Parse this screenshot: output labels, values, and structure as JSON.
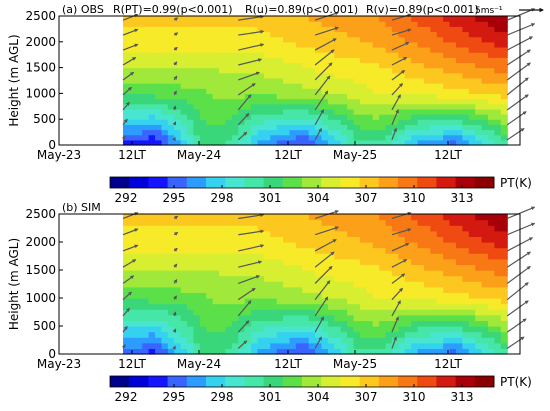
{
  "chart_data": [
    {
      "type": "heatmap",
      "panel_label": "(a) OBS",
      "stats": [
        "R(PT)=0.99(p<0.001)",
        "R(u)=0.89(p<0.001)",
        "R(v)=0.89(p<0.001)"
      ],
      "vector_scale_label": "5ms⁻¹",
      "vector_scale_value": 5,
      "ylabel": "Height (m AGL)",
      "ylim": [
        0,
        2500
      ],
      "y_ticks": [
        "0",
        "500",
        "1000",
        "1500",
        "2000",
        "2500"
      ],
      "x_ticks": [
        "May-23",
        "12LT",
        "May-24",
        "12LT",
        "May-25",
        "12LT"
      ],
      "xlim_hours": [
        0,
        72
      ],
      "data_hours": [
        10,
        70
      ],
      "pt_field": {
        "surface_max_K": [
          null,
          306,
          298,
          306,
          298,
          307,
          299,
          309
        ],
        "surface_max_hours": [
          10,
          14,
          22,
          37,
          46,
          62,
          64,
          70
        ],
        "low_core_K": [
          294,
          293,
          300,
          294,
          299,
          295,
          300
        ],
        "low_core_hours": [
          12,
          15,
          22,
          38,
          46,
          62,
          70
        ],
        "aloft_K": {
          "1000m": [
            302,
            303,
            305,
            307
          ],
          "2000m": [
            306,
            306,
            308,
            312
          ],
          "2500m": [
            307,
            307,
            309,
            314
          ]
        },
        "aloft_hours": [
          10,
          30,
          50,
          70
        ]
      },
      "wind_profiles": [
        {
          "hour": 10,
          "u_ms": [
            0.5,
            1,
            1.5,
            2,
            2.5,
            3,
            3.5,
            3.5,
            3.5
          ],
          "v_ms": [
            1,
            1.5,
            2,
            2,
            2,
            2,
            1.5,
            1.5,
            1.5
          ]
        },
        {
          "hour": 18,
          "u_ms": [
            0.2,
            0.3,
            0.3,
            0.5,
            0.6,
            0.6,
            0.7,
            0.8,
            0.8
          ],
          "v_ms": [
            0.6,
            0.8,
            1,
            1,
            1,
            0.8,
            0.7,
            0.6,
            0.6
          ]
        },
        {
          "hour": 28,
          "u_ms": [
            2,
            2.5,
            3,
            4,
            5,
            5.5,
            6,
            6,
            6
          ],
          "v_ms": [
            2,
            3,
            4,
            3,
            2,
            1.5,
            1.5,
            1,
            1
          ]
        },
        {
          "hour": 40,
          "u_ms": [
            1.5,
            2,
            3,
            3.5,
            4,
            4.5,
            5,
            5.5,
            5.5
          ],
          "v_ms": [
            3,
            4,
            5,
            5,
            4.5,
            4,
            3,
            2,
            2
          ]
        },
        {
          "hour": 52,
          "u_ms": [
            1,
            1.5,
            2,
            2.5,
            3,
            3.5,
            4,
            4.5,
            4.5
          ],
          "v_ms": [
            3,
            4,
            4,
            3,
            2.5,
            2,
            2,
            1.5,
            1.5
          ]
        },
        {
          "hour": 70,
          "u_ms": [
            4,
            4.5,
            5,
            5,
            5.5,
            5.5,
            6,
            6.5,
            6.5
          ],
          "v_ms": [
            3,
            3.5,
            4,
            4.5,
            4.5,
            4,
            3.5,
            3,
            3
          ]
        }
      ]
    },
    {
      "type": "heatmap",
      "panel_label": "(b) SIM",
      "ylabel": "Height (m AGL)",
      "ylim": [
        0,
        2500
      ],
      "y_ticks": [
        "0",
        "500",
        "1000",
        "1500",
        "2000",
        "2500"
      ],
      "x_ticks": [
        "May-23",
        "12LT",
        "May-24",
        "12LT",
        "May-25",
        "12LT"
      ],
      "xlim_hours": [
        0,
        72
      ],
      "data_hours": [
        10,
        70
      ],
      "pt_field": {
        "surface_max_K": [
          null,
          306,
          298,
          306,
          298,
          307,
          299,
          309
        ],
        "surface_max_hours": [
          10,
          14,
          22,
          37,
          46,
          62,
          64,
          70
        ],
        "low_core_K": [
          295,
          294,
          300,
          294,
          299,
          295,
          300
        ],
        "low_core_hours": [
          12,
          15,
          22,
          38,
          46,
          62,
          70
        ],
        "aloft_K": {
          "1000m": [
            302,
            303,
            305,
            307
          ],
          "2000m": [
            306,
            306,
            308,
            312
          ],
          "2500m": [
            307,
            307,
            309,
            314
          ]
        },
        "aloft_hours": [
          10,
          30,
          50,
          70
        ]
      },
      "wind_profiles": [
        {
          "hour": 10,
          "u_ms": [
            0.5,
            1,
            1.5,
            2,
            2.5,
            3,
            3.5,
            3.5,
            3.5
          ],
          "v_ms": [
            1,
            1.5,
            2,
            2,
            2,
            2,
            1.5,
            1.5,
            1.5
          ]
        },
        {
          "hour": 18,
          "u_ms": [
            0.2,
            0.3,
            0.3,
            0.5,
            0.6,
            0.6,
            0.7,
            0.8,
            0.8
          ],
          "v_ms": [
            0.6,
            0.8,
            1,
            1,
            1,
            0.8,
            0.7,
            0.6,
            0.6
          ]
        },
        {
          "hour": 28,
          "u_ms": [
            2,
            2.5,
            3,
            4,
            5,
            5.5,
            6,
            6,
            6
          ],
          "v_ms": [
            2,
            3,
            4,
            3,
            2,
            1.5,
            1.5,
            1,
            1
          ]
        },
        {
          "hour": 40,
          "u_ms": [
            1.5,
            2,
            3,
            3.5,
            4,
            4.5,
            5,
            5.5,
            5.5
          ],
          "v_ms": [
            3,
            4,
            5,
            5,
            4.5,
            4,
            3,
            2,
            2
          ]
        },
        {
          "hour": 52,
          "u_ms": [
            1,
            1.5,
            2,
            2.5,
            3,
            3.5,
            4,
            4.5,
            4.5
          ],
          "v_ms": [
            3,
            4,
            4,
            3,
            2.5,
            2,
            2,
            1.5,
            1.5
          ]
        },
        {
          "hour": 70,
          "u_ms": [
            4,
            4.5,
            5,
            5,
            5.5,
            5.5,
            6,
            6.5,
            6.5
          ],
          "v_ms": [
            3,
            3.5,
            4,
            4.5,
            4.5,
            4,
            3.5,
            3,
            3
          ]
        }
      ]
    }
  ],
  "colorbar": {
    "label": "PT(K)",
    "vmin": 291,
    "vmax": 315,
    "ticks": [
      292,
      295,
      298,
      301,
      304,
      307,
      310,
      313
    ],
    "tick_labels": [
      "292",
      "295",
      "298",
      "301",
      "304",
      "307",
      "310",
      "313"
    ],
    "colors": [
      "#00008f",
      "#0000d8",
      "#1414ff",
      "#3a64ff",
      "#2d9cff",
      "#35d2f0",
      "#48e6d0",
      "#46e6a8",
      "#3ad67a",
      "#5ce04a",
      "#a0e83a",
      "#d8ee30",
      "#f7ea28",
      "#fcc820",
      "#fba018",
      "#f77814",
      "#ee4a12",
      "#d41a10",
      "#a80008",
      "#8a0000"
    ]
  },
  "colors": {
    "arrow": "#555555",
    "missing": "#ffffff"
  }
}
